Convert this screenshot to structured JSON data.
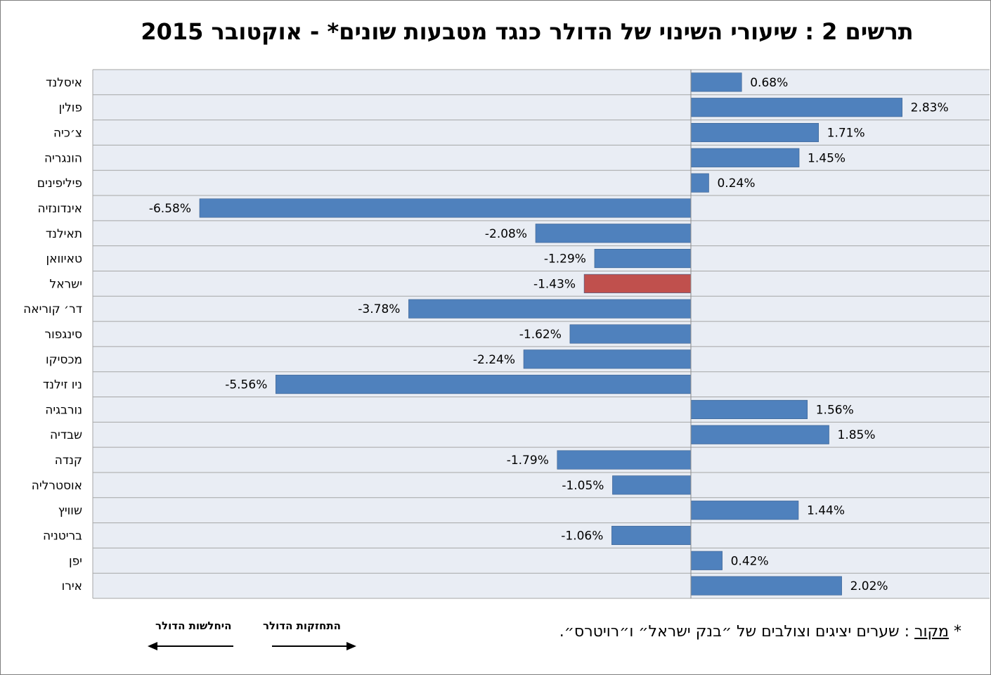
{
  "chart_data": {
    "type": "bar",
    "orientation": "horizontal",
    "title": "תרשים 2 : שיעורי השינוי של הדולר כנגד מטבעות שונים* - אוקטובר 2015",
    "categories": [
      "איסלנד",
      "פולין",
      "צ׳כיה",
      "הונגריה",
      "פיליפינים",
      "אינדונזיה",
      "תאילנד",
      "טאיוואן",
      "ישראל",
      "דר׳ קוריאה",
      "סינגפור",
      "מכסיקו",
      "ניו זילנד",
      "נורבגיה",
      "שבדיה",
      "קנדה",
      "אוסטרליה",
      "שוויץ",
      "בריטניה",
      "יפן",
      "אירו"
    ],
    "values": [
      0.68,
      2.83,
      1.71,
      1.45,
      0.24,
      -6.58,
      -2.08,
      -1.29,
      -1.43,
      -3.78,
      -1.62,
      -2.24,
      -5.56,
      1.56,
      1.85,
      -1.79,
      -1.05,
      1.44,
      -1.06,
      0.42,
      2.02
    ],
    "labels": [
      "0.68%",
      "2.83%",
      "1.71%",
      "1.45%",
      "0.24%",
      "-6.58%",
      "-2.08%",
      "-1.29%",
      "-1.43%",
      "-3.78%",
      "-1.62%",
      "-2.24%",
      "-5.56%",
      "1.56%",
      "1.85%",
      "-1.79%",
      "-1.05%",
      "1.44%",
      "-1.06%",
      "0.42%",
      "2.02%"
    ],
    "highlight_category": "ישראל",
    "xlim": [
      -8,
      4
    ],
    "grid": true,
    "colors": {
      "bar": "#4f81bd",
      "highlight": "#c0504d",
      "plot_bg": "#e9edf4",
      "grid": "#a6a6a6"
    }
  },
  "legend": {
    "weakening_label": "היחלשות הדולר",
    "strengthening_label": "התחזקות הדולר"
  },
  "source": {
    "prefix": "* ",
    "label": "מקור",
    "text": ": שערים יציגים וצולבים של ״בנק ישראל״ ו״רויטרס״."
  }
}
